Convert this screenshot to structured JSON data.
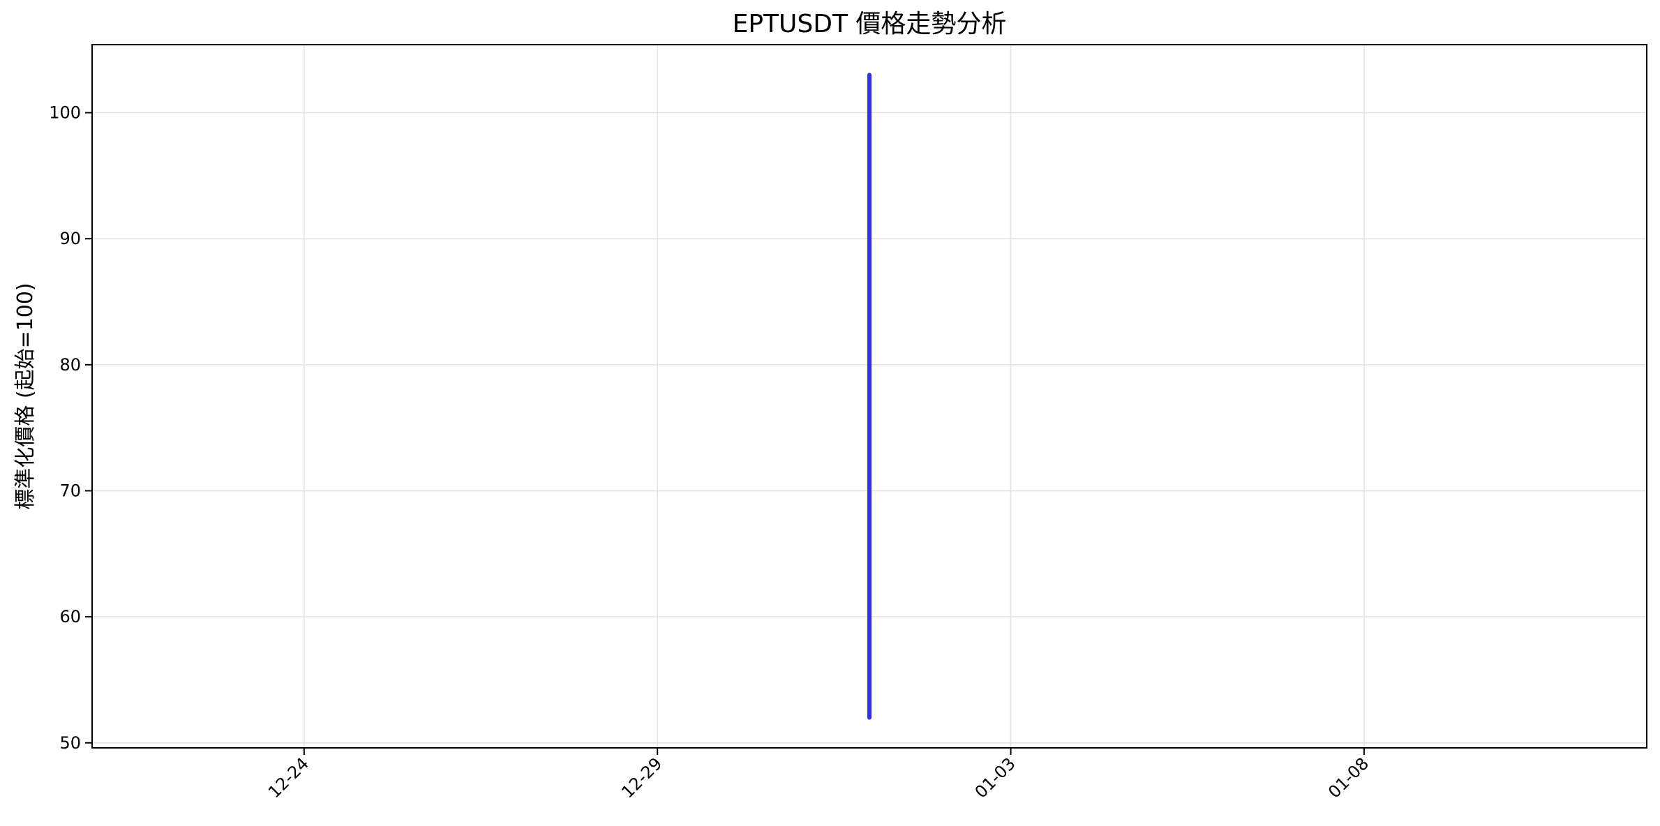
{
  "chart_data": {
    "type": "line",
    "title": "EPTUSDT 價格走勢分析",
    "xlabel": "",
    "ylabel": "標準化價格 (起始=100)",
    "x_ticks": [
      "12-24",
      "12-29",
      "01-03",
      "01-08"
    ],
    "y_ticks": [
      50,
      60,
      70,
      80,
      90,
      100
    ],
    "xlim": [
      "12-21",
      "01-12"
    ],
    "ylim": [
      49.6,
      105.4
    ],
    "grid": true,
    "series": [
      {
        "color": "#3333dd",
        "points": [
          {
            "x": "01-01",
            "y": 103
          },
          {
            "x": "01-01",
            "y": 52
          }
        ]
      }
    ]
  }
}
